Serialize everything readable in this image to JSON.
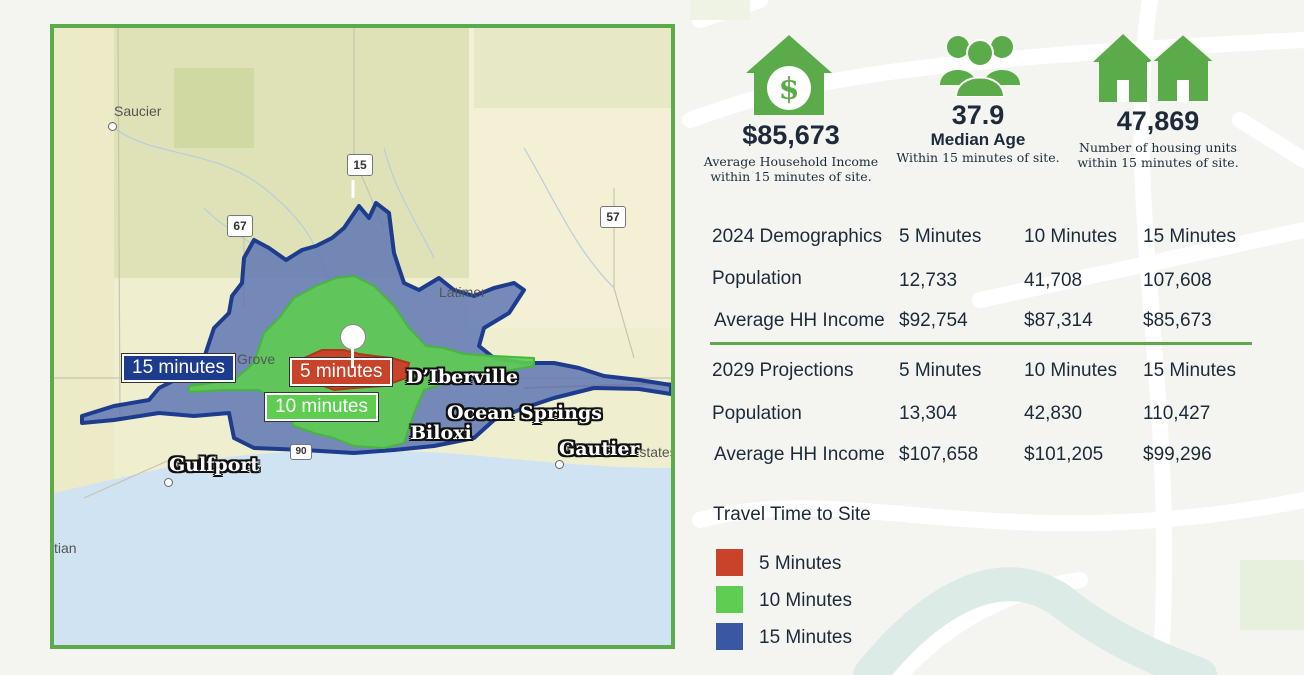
{
  "colors": {
    "five": "#c8432a",
    "ten": "#5ecd52",
    "fifteen": "#3a57a4",
    "accent_green": "#5cab4a",
    "text_dark": "#1d2a3a"
  },
  "map": {
    "places": {
      "saucier": "Saucier",
      "latimer": "Latimer",
      "grove": "Grove",
      "estates": "Estates",
      "tian": "tian"
    },
    "cities": {
      "dIberville": "D’Iberville",
      "oceanSprings": "Ocean Springs",
      "biloxi": "Biloxi",
      "gautier": "Gautier",
      "gulfport": "Gulfport"
    },
    "highways": {
      "h15": "15",
      "h67": "67",
      "h57": "57",
      "h90": "90"
    },
    "zone_labels": {
      "fifteen": "15 minutes",
      "five": "5 minutes",
      "ten": "10 minutes"
    }
  },
  "stats": {
    "income": {
      "icon": "house-dollar-icon",
      "value": "$85,673",
      "line1": "Average Household Income",
      "line2": "within 15 minutes of site."
    },
    "age": {
      "icon": "people-icon",
      "value": "37.9",
      "label": "Median Age",
      "sub": "Within 15 minutes of site."
    },
    "housing": {
      "icon": "houses-icon",
      "value": "47,869",
      "line1": "Number of housing units",
      "line2": "within 15 minutes of site."
    }
  },
  "demographics_2024": {
    "header": [
      "2024 Demographics",
      "5 Minutes",
      "10 Minutes",
      "15 Minutes"
    ],
    "population": [
      "Population",
      "12,733",
      "41,708",
      "107,608"
    ],
    "income": [
      "Average HH Income",
      "$92,754",
      "$87,314",
      "$85,673"
    ]
  },
  "projections_2029": {
    "header": [
      "2029 Projections",
      "5 Minutes",
      "10 Minutes",
      "15 Minutes"
    ],
    "population": [
      "Population",
      "13,304",
      "42,830",
      "110,427"
    ],
    "income": [
      "Average HH Income",
      "$107,658",
      "$101,205",
      "$99,296"
    ]
  },
  "legend": {
    "title": "Travel Time to Site",
    "items": [
      "5 Minutes",
      "10 Minutes",
      "15 Minutes"
    ]
  }
}
